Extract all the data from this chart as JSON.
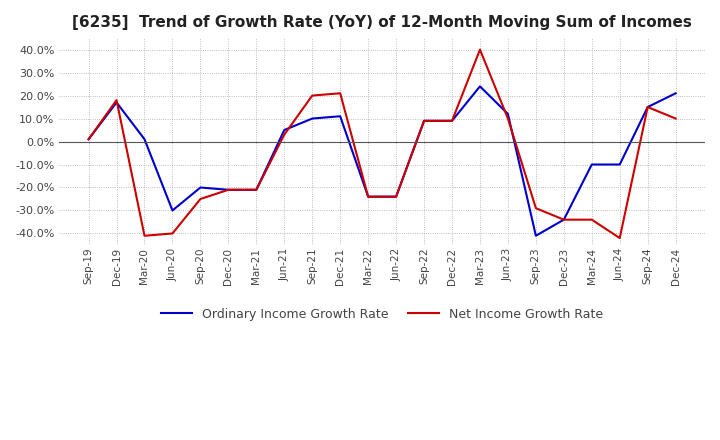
{
  "title": "[6235]  Trend of Growth Rate (YoY) of 12-Month Moving Sum of Incomes",
  "title_fontsize": 11,
  "ylim": [
    -0.45,
    0.45
  ],
  "yticks": [
    -0.4,
    -0.3,
    -0.2,
    -0.1,
    0.0,
    0.1,
    0.2,
    0.3,
    0.4
  ],
  "background_color": "#ffffff",
  "grid_color": "#aaaaaa",
  "ordinary_color": "#0000cc",
  "net_color": "#cc0000",
  "legend_ordinary": "Ordinary Income Growth Rate",
  "legend_net": "Net Income Growth Rate",
  "x_labels": [
    "Sep-19",
    "Dec-19",
    "Mar-20",
    "Jun-20",
    "Sep-20",
    "Dec-20",
    "Mar-21",
    "Jun-21",
    "Sep-21",
    "Dec-21",
    "Mar-22",
    "Jun-22",
    "Sep-22",
    "Dec-22",
    "Mar-23",
    "Jun-23",
    "Sep-23",
    "Dec-23",
    "Mar-24",
    "Jun-24",
    "Sep-24",
    "Dec-24"
  ],
  "ordinary_income_growth": [
    0.01,
    0.17,
    0.01,
    -0.3,
    -0.2,
    -0.21,
    -0.21,
    0.05,
    0.1,
    0.11,
    -0.24,
    -0.24,
    0.09,
    0.09,
    0.24,
    0.12,
    -0.41,
    -0.34,
    -0.1,
    -0.1,
    0.15,
    0.21
  ],
  "net_income_growth": [
    0.01,
    0.18,
    -0.41,
    -0.4,
    -0.25,
    -0.21,
    -0.21,
    0.03,
    0.2,
    0.21,
    -0.24,
    -0.24,
    0.09,
    0.09,
    0.4,
    0.1,
    -0.29,
    -0.34,
    -0.34,
    -0.42,
    0.15,
    0.1
  ]
}
